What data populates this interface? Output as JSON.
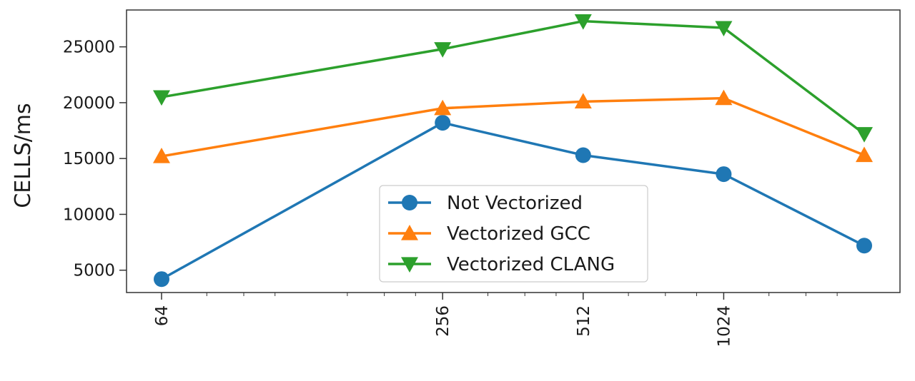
{
  "chart_data": {
    "type": "line",
    "title": "",
    "xlabel": "",
    "ylabel": "CELLS/ms",
    "x_scale": "log2",
    "x": [
      64,
      256,
      512,
      1024,
      2048
    ],
    "xticks": [
      "64",
      "256",
      "512",
      "1024"
    ],
    "yticks": [
      "5000",
      "10000",
      "15000",
      "20000",
      "25000"
    ],
    "ylim": [
      3000,
      28300
    ],
    "grid": false,
    "legend_position": "lower-center",
    "series": [
      {
        "name": "Not Vectorized",
        "color": "#1f77b4",
        "marker": "circle",
        "values": [
          4200,
          18200,
          15300,
          13600,
          7200
        ]
      },
      {
        "name": "Vectorized GCC",
        "color": "#ff7f0e",
        "marker": "triangle-up",
        "values": [
          15200,
          19500,
          20100,
          20400,
          15300
        ]
      },
      {
        "name": "Vectorized CLANG",
        "color": "#2ca02c",
        "marker": "triangle-down",
        "values": [
          20500,
          24800,
          27300,
          26700,
          17200
        ]
      }
    ]
  }
}
